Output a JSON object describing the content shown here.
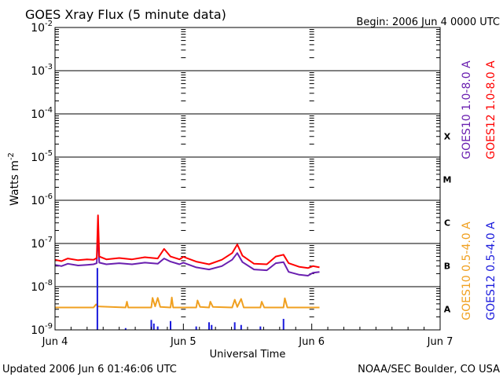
{
  "chart_data": {
    "type": "line",
    "title": "GOES Xray Flux (5 minute data)",
    "begin": "Begin:  2006 Jun 4 0000 UTC",
    "xlabel": "Universal Time",
    "ylabel": "Watts m",
    "ylabel_exponent": "-2",
    "updated": "Updated 2006 Jun  6 01:46:06 UTC",
    "source": "NOAA/SEC Boulder, CO USA",
    "x_unit": "days since 2006 Jun 4 0000 UTC",
    "xlim": [
      0,
      3
    ],
    "x_ticks": [
      {
        "label": "Jun 4",
        "x": 0
      },
      {
        "label": "Jun 5",
        "x": 1
      },
      {
        "label": "Jun 6",
        "x": 2
      },
      {
        "label": "Jun 7",
        "x": 3
      }
    ],
    "yscale": "log",
    "ylim_exp": [
      -9,
      -2
    ],
    "y_ticks": [
      {
        "base": "10",
        "exp": "-9",
        "e": -9
      },
      {
        "base": "10",
        "exp": "-8",
        "e": -8
      },
      {
        "base": "10",
        "exp": "-7",
        "e": -7
      },
      {
        "base": "10",
        "exp": "-6",
        "e": -6
      },
      {
        "base": "10",
        "exp": "-5",
        "e": -5
      },
      {
        "base": "10",
        "exp": "-4",
        "e": -4
      },
      {
        "base": "10",
        "exp": "-3",
        "e": -3
      },
      {
        "base": "10",
        "exp": "-2",
        "e": -2
      }
    ],
    "flare_classes": [
      {
        "label": "X",
        "e": -4
      },
      {
        "label": "M",
        "e": -5
      },
      {
        "label": "C",
        "e": -6
      },
      {
        "label": "B",
        "e": -7
      },
      {
        "label": "A",
        "e": -8
      }
    ],
    "series": [
      {
        "name": "GOES10 1.0-8.0 A",
        "color": "#6a1fb0",
        "style": "line",
        "points": [
          [
            0,
            3.2e-08
          ],
          [
            0.05,
            3e-08
          ],
          [
            0.1,
            3.4e-08
          ],
          [
            0.18,
            3.1e-08
          ],
          [
            0.25,
            3.2e-08
          ],
          [
            0.3,
            3.3e-08
          ],
          [
            0.325,
            3.5e-08
          ],
          [
            0.335,
            2.1e-07
          ],
          [
            0.345,
            3.6e-08
          ],
          [
            0.4,
            3.3e-08
          ],
          [
            0.5,
            3.5e-08
          ],
          [
            0.6,
            3.3e-08
          ],
          [
            0.7,
            3.6e-08
          ],
          [
            0.8,
            3.4e-08
          ],
          [
            0.85,
            4.5e-08
          ],
          [
            0.9,
            3.8e-08
          ],
          [
            0.97,
            3.3e-08
          ],
          [
            1.0,
            3.6e-08
          ],
          [
            1.1,
            2.8e-08
          ],
          [
            1.2,
            2.5e-08
          ],
          [
            1.3,
            3e-08
          ],
          [
            1.38,
            4.2e-08
          ],
          [
            1.42,
            6e-08
          ],
          [
            1.46,
            3.7e-08
          ],
          [
            1.55,
            2.5e-08
          ],
          [
            1.65,
            2.4e-08
          ],
          [
            1.72,
            3.5e-08
          ],
          [
            1.78,
            3.7e-08
          ],
          [
            1.82,
            2.2e-08
          ],
          [
            1.9,
            1.9e-08
          ],
          [
            1.97,
            1.8e-08
          ],
          [
            2.01,
            2.1e-08
          ],
          [
            2.06,
            2.2e-08
          ]
        ]
      },
      {
        "name": "GOES12 1.0-8.0 A",
        "color": "#ff0000",
        "style": "line",
        "points": [
          [
            0,
            4.2e-08
          ],
          [
            0.05,
            3.9e-08
          ],
          [
            0.1,
            4.5e-08
          ],
          [
            0.18,
            4.1e-08
          ],
          [
            0.25,
            4.3e-08
          ],
          [
            0.3,
            4.2e-08
          ],
          [
            0.325,
            4.6e-08
          ],
          [
            0.335,
            4.5e-07
          ],
          [
            0.345,
            5e-08
          ],
          [
            0.4,
            4.3e-08
          ],
          [
            0.5,
            4.6e-08
          ],
          [
            0.6,
            4.3e-08
          ],
          [
            0.7,
            4.8e-08
          ],
          [
            0.8,
            4.5e-08
          ],
          [
            0.85,
            7.5e-08
          ],
          [
            0.9,
            5e-08
          ],
          [
            0.97,
            4.3e-08
          ],
          [
            1.0,
            4.9e-08
          ],
          [
            1.1,
            3.8e-08
          ],
          [
            1.2,
            3.3e-08
          ],
          [
            1.3,
            4.2e-08
          ],
          [
            1.38,
            6e-08
          ],
          [
            1.42,
            9.5e-08
          ],
          [
            1.46,
            5.2e-08
          ],
          [
            1.55,
            3.4e-08
          ],
          [
            1.65,
            3.3e-08
          ],
          [
            1.72,
            5e-08
          ],
          [
            1.78,
            5.5e-08
          ],
          [
            1.82,
            3.5e-08
          ],
          [
            1.9,
            2.9e-08
          ],
          [
            1.97,
            2.7e-08
          ],
          [
            2.01,
            3e-08
          ],
          [
            2.06,
            2.8e-08
          ]
        ]
      },
      {
        "name": "GOES10 0.5-4.0 A",
        "color": "#f0a020",
        "style": "line",
        "points": [
          [
            0,
            3.3e-09
          ],
          [
            0.3,
            3.3e-09
          ],
          [
            0.32,
            3.9e-09
          ],
          [
            0.335,
            3.5e-09
          ],
          [
            0.55,
            3.3e-09
          ],
          [
            0.56,
            4.5e-09
          ],
          [
            0.57,
            3.3e-09
          ],
          [
            0.75,
            3.3e-09
          ],
          [
            0.76,
            5.5e-09
          ],
          [
            0.78,
            3.5e-09
          ],
          [
            0.8,
            5.5e-09
          ],
          [
            0.82,
            3.4e-09
          ],
          [
            0.9,
            3.3e-09
          ],
          [
            0.91,
            5.6e-09
          ],
          [
            0.92,
            3.3e-09
          ],
          [
            1.1,
            3.3e-09
          ],
          [
            1.11,
            4.8e-09
          ],
          [
            1.13,
            3.4e-09
          ],
          [
            1.2,
            3.3e-09
          ],
          [
            1.21,
            4.5e-09
          ],
          [
            1.23,
            3.4e-09
          ],
          [
            1.38,
            3.3e-09
          ],
          [
            1.4,
            5e-09
          ],
          [
            1.42,
            3.4e-09
          ],
          [
            1.45,
            5.2e-09
          ],
          [
            1.47,
            3.3e-09
          ],
          [
            1.6,
            3.3e-09
          ],
          [
            1.61,
            4.5e-09
          ],
          [
            1.63,
            3.3e-09
          ],
          [
            1.78,
            3.3e-09
          ],
          [
            1.79,
            5.4e-09
          ],
          [
            1.81,
            3.3e-09
          ],
          [
            2.06,
            3.3e-09
          ]
        ]
      },
      {
        "name": "GOES12 0.5-4.0 A",
        "color": "#1a1adc",
        "style": "spikes",
        "points": [
          [
            0.33,
            2.7e-08
          ],
          [
            0.55,
            1.1e-09
          ],
          [
            0.75,
            1.7e-09
          ],
          [
            0.77,
            1.4e-09
          ],
          [
            0.8,
            1.2e-09
          ],
          [
            0.9,
            1.6e-09
          ],
          [
            1.1,
            1.2e-09
          ],
          [
            1.2,
            1.5e-09
          ],
          [
            1.22,
            1.3e-09
          ],
          [
            1.4,
            1.5e-09
          ],
          [
            1.45,
            1.3e-09
          ],
          [
            1.6,
            1.2e-09
          ],
          [
            1.78,
            1.8e-09
          ]
        ]
      }
    ],
    "grid": true
  }
}
